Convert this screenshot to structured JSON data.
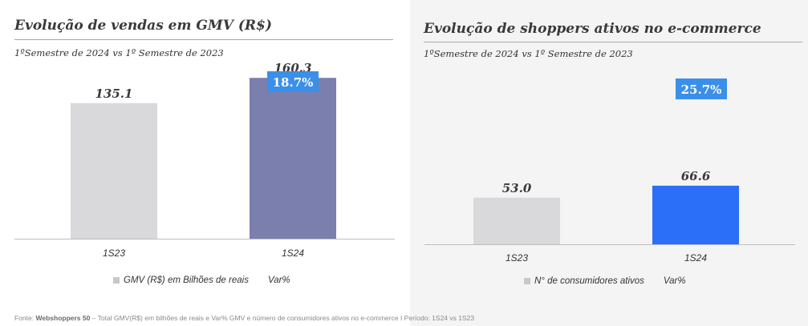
{
  "charts": [
    {
      "title": "Evolução de vendas em GMV (R$)",
      "subtitle": "1ºSemestre de 2024 vs 1º Semestre de 2023",
      "legend": {
        "series_label": "GMV (R$) em Bilhões de reais",
        "var_label": "Var%"
      },
      "colors": {
        "bar_1S23": "#d9d8da",
        "bar_1S24": "#7a7fad",
        "var_badge": "#3a8fe8"
      }
    },
    {
      "title": "Evolução de shoppers ativos no e-commerce",
      "subtitle": "1ºSemestre de 2024 vs 1º Semestre de 2023",
      "legend": {
        "series_label": "N° de consumidores ativos",
        "var_label": "Var%"
      },
      "colors": {
        "bar_1S23": "#d9d8da",
        "bar_1S24": "#2b6ef7",
        "var_badge": "#3a8fe8"
      }
    }
  ],
  "chart_data": [
    {
      "type": "bar",
      "title": "Evolução de vendas em GMV (R$)",
      "categories": [
        "1S23",
        "1S24"
      ],
      "values": [
        135.1,
        160.3
      ],
      "value_labels": [
        "135.1",
        "160.3"
      ],
      "series": [
        {
          "name": "GMV (R$) em Bilhões de reais",
          "values": [
            135.1,
            160.3
          ]
        }
      ],
      "variation": "18.7%",
      "ylim": [
        0,
        190
      ]
    },
    {
      "type": "bar",
      "title": "Evolução de shoppers ativos no e-commerce",
      "categories": [
        "1S23",
        "1S24"
      ],
      "values": [
        53.0,
        66.6
      ],
      "value_labels": [
        "53.0",
        "66.6"
      ],
      "series": [
        {
          "name": "N° de consumidores ativos",
          "values": [
            53.0,
            66.6
          ]
        }
      ],
      "variation": "25.7%",
      "ylim": [
        0,
        223
      ]
    }
  ],
  "footer": {
    "source_prefix": "Fonte:",
    "source_name": "Webshoppers 50",
    "text": " – Total GMV(R$) em bilhões de reais e Var% GMV e número de consumidores ativos no e-commerce I Período: 1S24 vs 1S23"
  }
}
